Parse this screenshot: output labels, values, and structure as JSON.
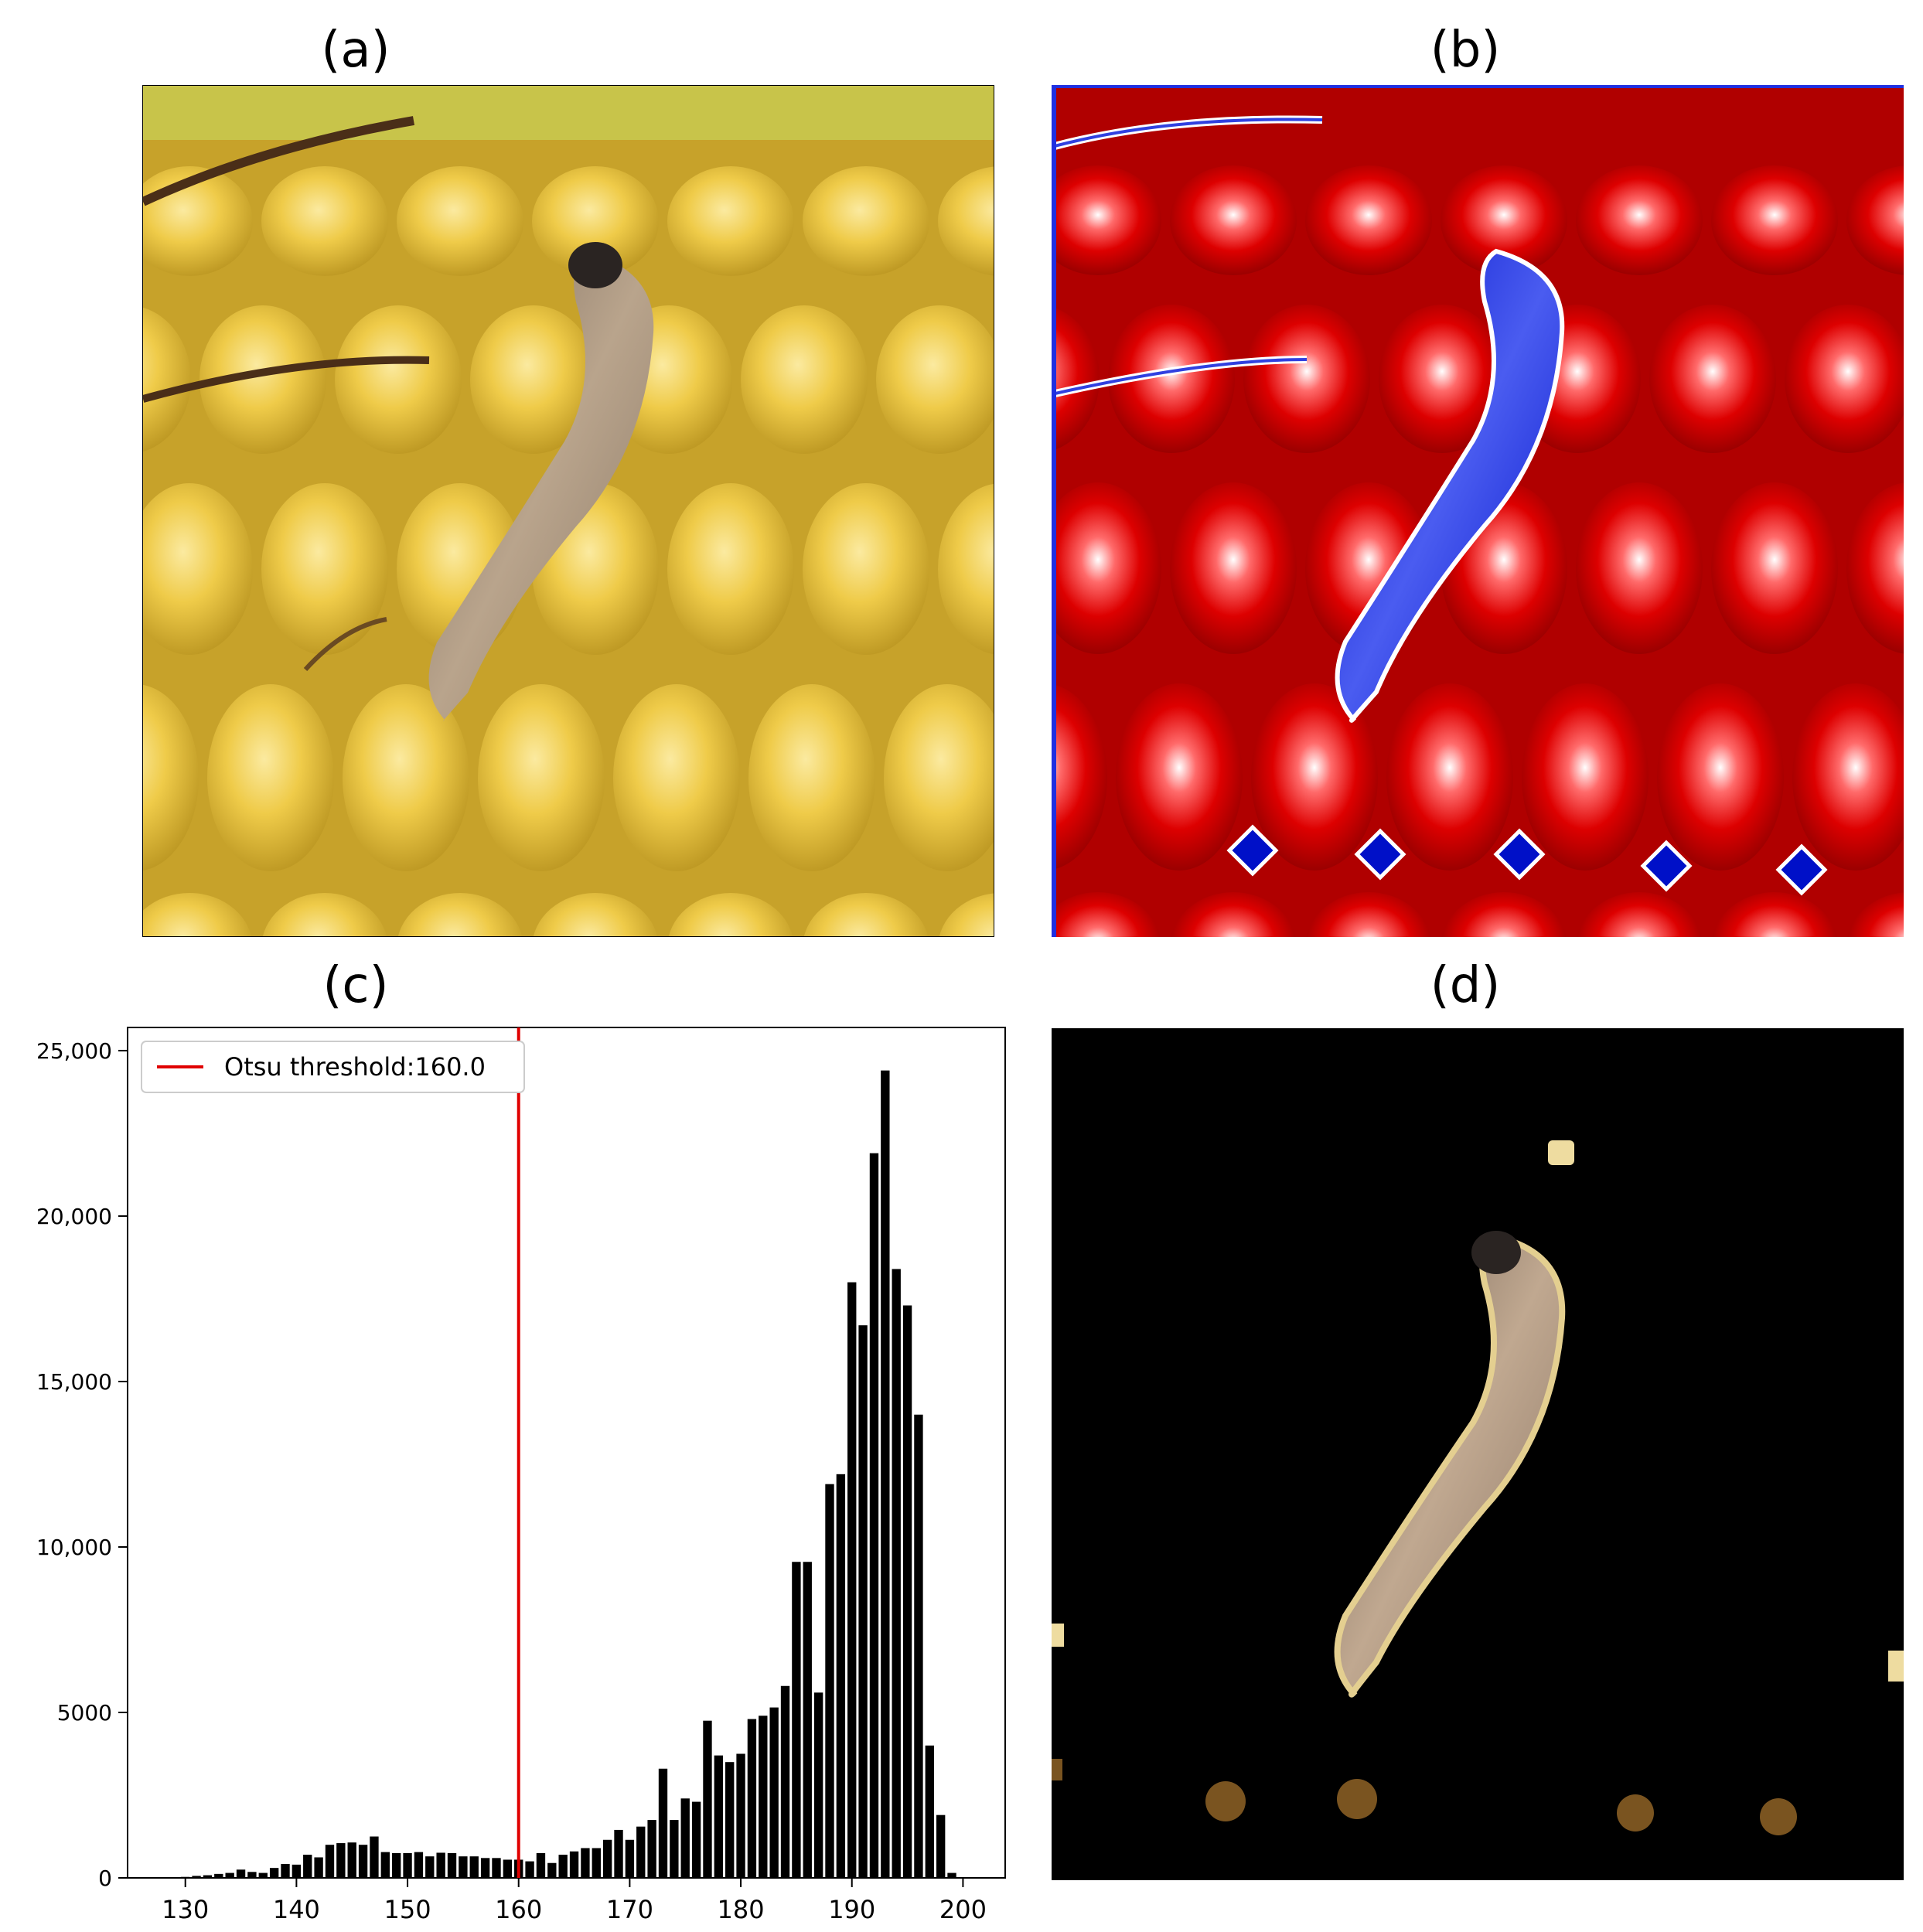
{
  "panels": {
    "a": {
      "title": "(a)"
    },
    "b": {
      "title": "(b)"
    },
    "c": {
      "title": "(c)"
    },
    "d": {
      "title": "(d)"
    }
  },
  "colors": {
    "corn": "#e8c23a",
    "corn_highlight": "#f7e08a",
    "corn_shadow": "#a8861e",
    "silk": "#5a3a1e",
    "larva": "#9a8672",
    "heat_red": "#cc0000",
    "heat_blue": "#1020d8",
    "threshold_line": "#e00000",
    "bar": "#000000"
  },
  "chart_data": {
    "type": "bar",
    "title": "(c)",
    "xlabel": "",
    "ylabel": "",
    "x_ticks": [
      130,
      140,
      150,
      160,
      170,
      180,
      190,
      200
    ],
    "y_ticks": [
      0,
      5000,
      10000,
      15000,
      20000,
      25000
    ],
    "y_tick_labels": [
      "0",
      "5000",
      "10,000",
      "15,000",
      "20,000",
      "25,000"
    ],
    "xlim": [
      124.8,
      203.8
    ],
    "ylim": [
      0,
      25700
    ],
    "threshold": {
      "value": 160.0,
      "label": "Otsu threshold:160.0"
    },
    "legend_position": "upper left",
    "bins": [
      [
        130,
        30
      ],
      [
        131,
        60
      ],
      [
        132,
        80
      ],
      [
        133,
        120
      ],
      [
        134,
        150
      ],
      [
        135,
        250
      ],
      [
        136,
        180
      ],
      [
        137,
        150
      ],
      [
        138,
        300
      ],
      [
        139,
        420
      ],
      [
        140,
        400
      ],
      [
        141,
        700
      ],
      [
        142,
        620
      ],
      [
        143,
        1000
      ],
      [
        144,
        1050
      ],
      [
        145,
        1070
      ],
      [
        146,
        1000
      ],
      [
        147,
        1250
      ],
      [
        148,
        780
      ],
      [
        149,
        750
      ],
      [
        150,
        750
      ],
      [
        151,
        780
      ],
      [
        152,
        650
      ],
      [
        153,
        760
      ],
      [
        154,
        750
      ],
      [
        155,
        650
      ],
      [
        156,
        650
      ],
      [
        157,
        600
      ],
      [
        158,
        600
      ],
      [
        159,
        550
      ],
      [
        160,
        550
      ],
      [
        161,
        500
      ],
      [
        162,
        750
      ],
      [
        163,
        450
      ],
      [
        164,
        700
      ],
      [
        165,
        800
      ],
      [
        166,
        900
      ],
      [
        167,
        900
      ],
      [
        168,
        1150
      ],
      [
        169,
        1450
      ],
      [
        170,
        1150
      ],
      [
        171,
        1550
      ],
      [
        172,
        1750
      ],
      [
        173,
        3300
      ],
      [
        174,
        1750
      ],
      [
        175,
        2400
      ],
      [
        176,
        2300
      ],
      [
        177,
        4750
      ],
      [
        178,
        3700
      ],
      [
        179,
        3500
      ],
      [
        180,
        3750
      ],
      [
        181,
        4800
      ],
      [
        182,
        4900
      ],
      [
        183,
        5150
      ],
      [
        184,
        5800
      ],
      [
        185,
        9550
      ],
      [
        186,
        9550
      ],
      [
        187,
        5600
      ],
      [
        188,
        11900
      ],
      [
        189,
        12200
      ],
      [
        190,
        18000
      ],
      [
        191,
        16700
      ],
      [
        192,
        21900
      ],
      [
        193,
        24400
      ],
      [
        194,
        18400
      ],
      [
        195,
        17300
      ],
      [
        196,
        14000
      ],
      [
        197,
        4000
      ],
      [
        198,
        1900
      ],
      [
        199,
        150
      ]
    ]
  }
}
